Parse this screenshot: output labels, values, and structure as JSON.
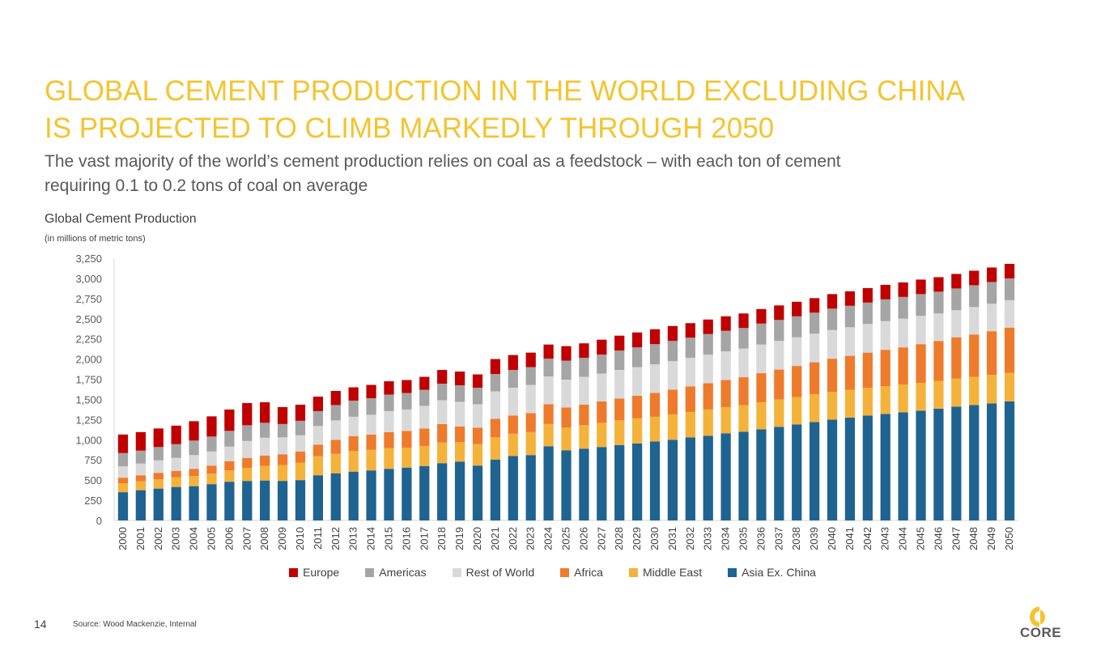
{
  "title": {
    "line1": "GLOBAL CEMENT PRODUCTION IN THE WORLD EXCLUDING CHINA",
    "line2": "IS PROJECTED TO CLIMB MARKEDLY THROUGH 2050"
  },
  "subtitle": {
    "line1": "The vast majority of the world’s cement production relies on coal as a feedstock – with each ton of cement",
    "line2": "requiring 0.1 to 0.2 tons of coal on average"
  },
  "footer": {
    "page_number": "14",
    "source": "Source: Wood Mackenzie, Internal",
    "logo_text": "CORE"
  },
  "colors": {
    "title": "#F4C430",
    "logo_accent": "#F4C430"
  },
  "chart_data": {
    "type": "stacked_bar",
    "title": "Global Cement Production",
    "subtitle": "(in millions of metric tons)",
    "ylim": [
      0,
      3250
    ],
    "yticks": [
      0,
      250,
      500,
      750,
      1000,
      1250,
      1500,
      1750,
      2000,
      2250,
      2500,
      2750,
      3000,
      3250
    ],
    "ytick_labels": [
      "0",
      "250",
      "500",
      "750",
      "1,000",
      "1,250",
      "1,500",
      "1,750",
      "2,000",
      "2,250",
      "2,500",
      "2,750",
      "3,000",
      "3,250"
    ],
    "legend_position": "bottom",
    "categories": [
      "2000",
      "2001",
      "2002",
      "2003",
      "2004",
      "2005",
      "2006",
      "2007",
      "2008",
      "2009",
      "2010",
      "2011",
      "2012",
      "2013",
      "2014",
      "2015",
      "2016",
      "2017",
      "2018",
      "2019",
      "2020",
      "2021",
      "2022",
      "2023",
      "2024",
      "2025",
      "2026",
      "2027",
      "2028",
      "2029",
      "2030",
      "2031",
      "2032",
      "2033",
      "2034",
      "2035",
      "2036",
      "2037",
      "2038",
      "2039",
      "2040",
      "2041",
      "2042",
      "2043",
      "2044",
      "2045",
      "2046",
      "2047",
      "2048",
      "2049",
      "2050"
    ],
    "series": [
      {
        "name": "Asia Ex. China",
        "color": "#1F6391",
        "values": [
          350,
          375,
          395,
          415,
          425,
          450,
          480,
          490,
          495,
          490,
          500,
          560,
          585,
          605,
          620,
          640,
          655,
          675,
          710,
          730,
          680,
          755,
          800,
          810,
          920,
          870,
          890,
          910,
          935,
          955,
          980,
          1000,
          1030,
          1050,
          1080,
          1100,
          1130,
          1160,
          1190,
          1220,
          1250,
          1275,
          1300,
          1320,
          1340,
          1360,
          1385,
          1410,
          1430,
          1450,
          1475
        ]
      },
      {
        "name": "Middle East",
        "color": "#F5B23A",
        "values": [
          110,
          110,
          115,
          120,
          125,
          130,
          140,
          160,
          180,
          195,
          215,
          235,
          240,
          255,
          255,
          255,
          245,
          245,
          255,
          240,
          265,
          275,
          275,
          285,
          275,
          280,
          290,
          300,
          305,
          310,
          305,
          315,
          315,
          325,
          325,
          330,
          335,
          340,
          340,
          345,
          345,
          345,
          345,
          345,
          345,
          345,
          345,
          350,
          350,
          355,
          355
        ]
      },
      {
        "name": "Africa",
        "color": "#EE7B2C",
        "values": [
          70,
          75,
          80,
          80,
          90,
          100,
          115,
          125,
          130,
          135,
          140,
          145,
          175,
          185,
          190,
          200,
          210,
          220,
          230,
          195,
          205,
          230,
          225,
          235,
          245,
          250,
          255,
          265,
          270,
          280,
          295,
          305,
          315,
          325,
          335,
          345,
          360,
          370,
          385,
          395,
          410,
          420,
          435,
          450,
          460,
          480,
          495,
          510,
          525,
          540,
          560
        ]
      },
      {
        "name": "Rest of World",
        "color": "#D9D9D9",
        "values": [
          140,
          145,
          155,
          160,
          170,
          175,
          180,
          210,
          220,
          210,
          200,
          230,
          240,
          240,
          245,
          260,
          265,
          280,
          295,
          305,
          290,
          340,
          345,
          350,
          345,
          345,
          345,
          345,
          355,
          355,
          355,
          355,
          355,
          355,
          355,
          355,
          355,
          355,
          355,
          355,
          355,
          355,
          355,
          355,
          355,
          350,
          340,
          335,
          340,
          340,
          340
        ]
      },
      {
        "name": "Americas",
        "color": "#A5A5A5",
        "values": [
          165,
          160,
          165,
          170,
          180,
          185,
          195,
          195,
          185,
          165,
          180,
          185,
          190,
          200,
          205,
          205,
          205,
          200,
          205,
          205,
          205,
          215,
          220,
          220,
          220,
          235,
          235,
          235,
          240,
          245,
          250,
          250,
          250,
          255,
          255,
          255,
          260,
          260,
          260,
          260,
          265,
          265,
          265,
          270,
          270,
          270,
          270,
          270,
          270,
          270,
          270
        ]
      },
      {
        "name": "Europe",
        "color": "#C00000",
        "values": [
          230,
          230,
          230,
          230,
          240,
          250,
          265,
          275,
          255,
          210,
          200,
          180,
          175,
          165,
          165,
          165,
          160,
          160,
          170,
          170,
          165,
          185,
          185,
          180,
          175,
          180,
          180,
          185,
          185,
          185,
          185,
          185,
          180,
          180,
          180,
          180,
          180,
          180,
          180,
          180,
          180,
          180,
          180,
          180,
          180,
          180,
          180,
          180,
          180,
          180,
          180
        ]
      }
    ]
  }
}
